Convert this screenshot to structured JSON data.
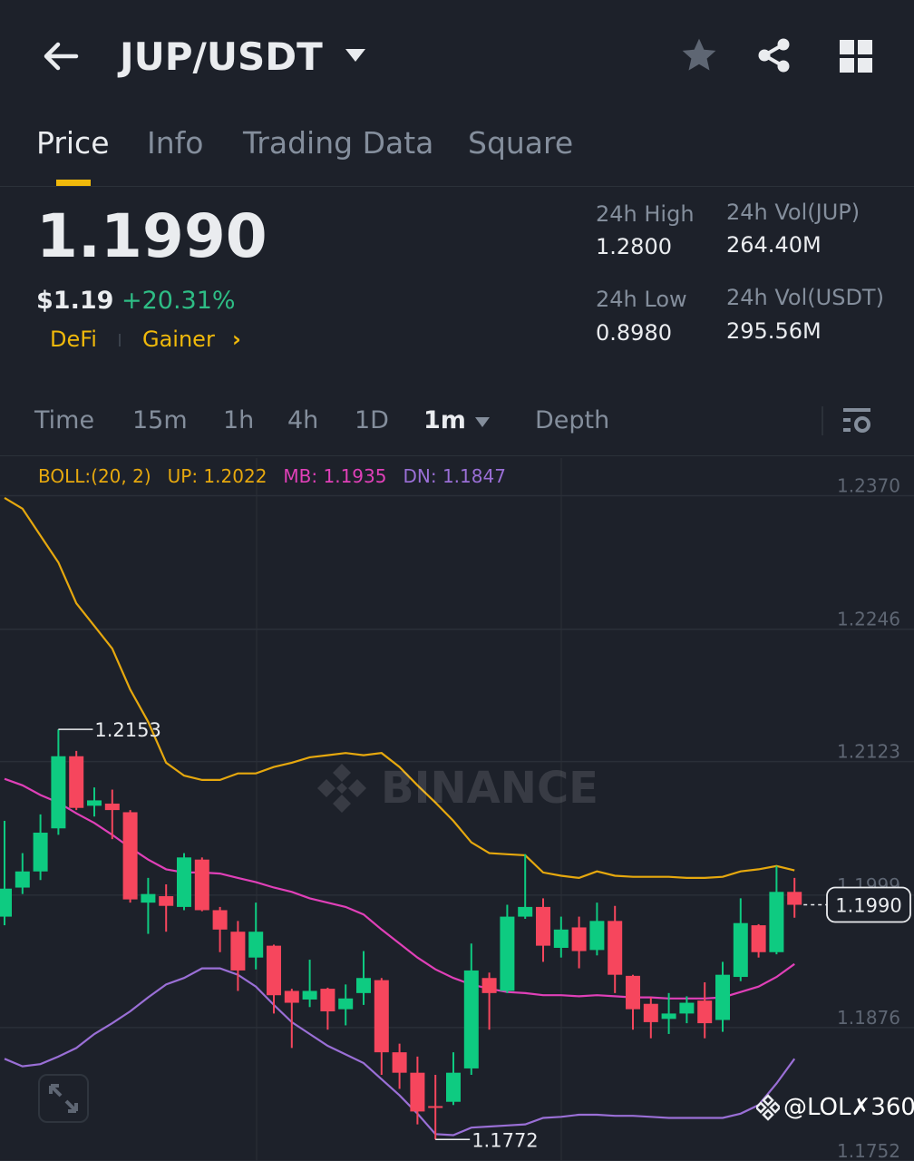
{
  "header": {
    "title": "JUP/USDT",
    "icons": [
      "back-arrow-icon",
      "dropdown-caret-icon",
      "star-icon",
      "share-icon",
      "grid-icon"
    ]
  },
  "tabs": [
    {
      "label": "Price",
      "active": true
    },
    {
      "label": "Info",
      "active": false
    },
    {
      "label": "Trading Data",
      "active": false
    },
    {
      "label": "Square",
      "active": false
    }
  ],
  "ticker": {
    "last_price": "1.1990",
    "usd_price": "$1.19",
    "change": "+20.31%",
    "tags": [
      "DeFi",
      "Gainer"
    ],
    "stats": {
      "high_label": "24h High",
      "high": "1.2800",
      "low_label": "24h Low",
      "low": "0.8980",
      "vol_base_label": "24h Vol(JUP)",
      "vol_base": "264.40M",
      "vol_quote_label": "24h Vol(USDT)",
      "vol_quote": "295.56M"
    }
  },
  "intervals": {
    "items": [
      "Time",
      "15m",
      "1h",
      "4h",
      "1D",
      "1m",
      "Depth"
    ],
    "active": "1m"
  },
  "indicator": {
    "name": "BOLL:(20, 2)",
    "up": "UP: 1.2022",
    "mb": "MB: 1.1935",
    "dn": "DN: 1.1847"
  },
  "colors": {
    "background": "#1d212a",
    "accent": "#f0b90b",
    "up": "#0ecb81",
    "down": "#f6465d",
    "boll_up": "#e6a80e",
    "boll_mb": "#e040b8",
    "boll_dn": "#9a6fd6"
  },
  "watermark": "BINANCE",
  "user_tag": "@LOL✗360",
  "chart_data": {
    "type": "candlestick",
    "interval": "1m",
    "ylim": [
      1.1752,
      1.2405
    ],
    "y_ticks": [
      "1.2370",
      "1.2246",
      "1.2123",
      "1.1999",
      "1.1876",
      "1.1752"
    ],
    "grid": true,
    "last_price_label": "1.1990",
    "max_label": "1.2153",
    "min_label": "1.1772",
    "candles": [
      [
        1.1979,
        1.2068,
        1.1971,
        1.2005
      ],
      [
        1.2006,
        1.2038,
        1.2,
        1.2021
      ],
      [
        1.2021,
        1.2074,
        1.2013,
        1.2057
      ],
      [
        1.2061,
        1.2153,
        1.2055,
        1.2128
      ],
      [
        1.2128,
        1.2133,
        1.2078,
        1.208
      ],
      [
        1.2082,
        1.2099,
        1.2072,
        1.2087
      ],
      [
        1.2084,
        1.2097,
        1.2051,
        1.2078
      ],
      [
        1.2076,
        1.2078,
        1.1992,
        1.1995
      ],
      [
        1.1992,
        1.2015,
        1.1963,
        1.2
      ],
      [
        1.1998,
        1.2009,
        1.1965,
        1.1989
      ],
      [
        1.1988,
        1.2038,
        1.1985,
        1.2034
      ],
      [
        1.2032,
        1.2034,
        1.1984,
        1.1985
      ],
      [
        1.1985,
        1.1988,
        1.1946,
        1.1967
      ],
      [
        1.1965,
        1.1975,
        1.191,
        1.1929
      ],
      [
        1.1941,
        1.1992,
        1.193,
        1.1965
      ],
      [
        1.1952,
        1.1953,
        1.1889,
        1.1906
      ],
      [
        1.191,
        1.1912,
        1.1857,
        1.1899
      ],
      [
        1.1902,
        1.1939,
        1.1895,
        1.191
      ],
      [
        1.1912,
        1.1913,
        1.1874,
        1.1891
      ],
      [
        1.1893,
        1.1916,
        1.1878,
        1.1903
      ],
      [
        1.1908,
        1.1947,
        1.1897,
        1.1922
      ],
      [
        1.192,
        1.1922,
        1.1832,
        1.1853
      ],
      [
        1.1853,
        1.1861,
        1.1819,
        1.1834
      ],
      [
        1.1834,
        1.1849,
        1.1786,
        1.1798
      ],
      [
        1.1803,
        1.1832,
        1.1772,
        1.1802
      ],
      [
        1.1807,
        1.1853,
        1.1804,
        1.1834
      ],
      [
        1.1838,
        1.1954,
        1.1832,
        1.1929
      ],
      [
        1.1922,
        1.1927,
        1.1874,
        1.1908
      ],
      [
        1.191,
        1.199,
        1.1908,
        1.1979
      ],
      [
        1.1979,
        1.2037,
        1.1977,
        1.1988
      ],
      [
        1.1988,
        1.1996,
        1.1937,
        1.1952
      ],
      [
        1.195,
        1.1979,
        1.1941,
        1.1967
      ],
      [
        1.1969,
        1.1979,
        1.1931,
        1.1947
      ],
      [
        1.1948,
        1.1992,
        1.1943,
        1.1975
      ],
      [
        1.1975,
        1.1989,
        1.1908,
        1.1925
      ],
      [
        1.1924,
        1.1925,
        1.1874,
        1.1893
      ],
      [
        1.1898,
        1.1904,
        1.1866,
        1.1881
      ],
      [
        1.1884,
        1.1908,
        1.187,
        1.1889
      ],
      [
        1.1889,
        1.1905,
        1.188,
        1.1899
      ],
      [
        1.1901,
        1.1918,
        1.1866,
        1.188
      ],
      [
        1.1883,
        1.1937,
        1.1872,
        1.1925
      ],
      [
        1.1923,
        1.1996,
        1.1919,
        1.1973
      ],
      [
        1.1971,
        1.1972,
        1.1941,
        1.1946
      ],
      [
        1.1946,
        1.2026,
        1.1944,
        1.2002
      ],
      [
        1.2002,
        1.2015,
        1.1978,
        1.199
      ]
    ],
    "candle_format": [
      "open",
      "high",
      "low",
      "close"
    ],
    "boll_up": [
      1.2368,
      1.2358,
      1.2333,
      1.2308,
      1.227,
      1.2249,
      1.2228,
      1.219,
      1.216,
      1.2122,
      1.211,
      1.2106,
      1.2106,
      1.2112,
      1.2112,
      1.2118,
      1.2122,
      1.2127,
      1.2129,
      1.2131,
      1.2129,
      1.2131,
      1.2118,
      1.2101,
      1.2085,
      1.2068,
      1.2048,
      1.2038,
      1.2037,
      1.2036,
      1.202,
      1.2017,
      1.2015,
      1.2021,
      1.2017,
      1.2016,
      1.2016,
      1.2016,
      1.2015,
      1.2015,
      1.2016,
      1.2021,
      1.2023,
      1.2026,
      1.2022
    ],
    "boll_mb": [
      1.2107,
      1.2101,
      1.2092,
      1.2085,
      1.2075,
      1.2066,
      1.2055,
      1.2043,
      1.2032,
      1.2023,
      1.202,
      1.202,
      1.2019,
      1.2015,
      1.2011,
      1.2006,
      1.2002,
      1.1996,
      1.1992,
      1.1988,
      1.1981,
      1.1967,
      1.1954,
      1.1941,
      1.193,
      1.1922,
      1.1916,
      1.1912,
      1.1909,
      1.1908,
      1.1906,
      1.1906,
      1.1905,
      1.1906,
      1.1905,
      1.1904,
      1.1904,
      1.1903,
      1.1903,
      1.1903,
      1.1904,
      1.1909,
      1.1914,
      1.1923,
      1.1935
    ],
    "boll_dn": [
      1.1847,
      1.184,
      1.1842,
      1.1849,
      1.1857,
      1.187,
      1.188,
      1.1891,
      1.1904,
      1.1916,
      1.1922,
      1.1931,
      1.1931,
      1.1925,
      1.1914,
      1.1897,
      1.1881,
      1.187,
      1.1859,
      1.1851,
      1.1843,
      1.1828,
      1.1813,
      1.1796,
      1.1777,
      1.1776,
      1.1783,
      1.1784,
      1.1785,
      1.1786,
      1.1792,
      1.1793,
      1.1795,
      1.1795,
      1.1794,
      1.1794,
      1.1793,
      1.1792,
      1.1792,
      1.1792,
      1.1792,
      1.1796,
      1.1804,
      1.1824,
      1.1847
    ]
  }
}
